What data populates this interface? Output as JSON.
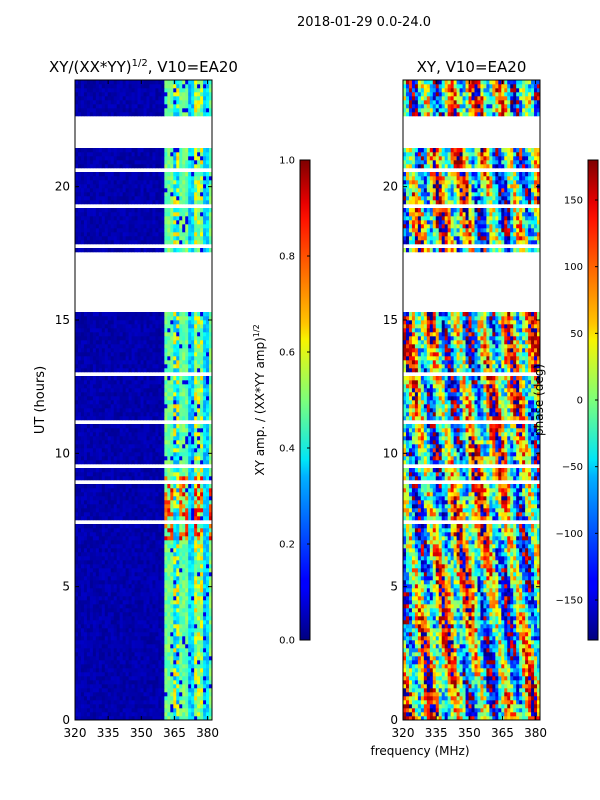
{
  "figure": {
    "suptitle": "2018-01-29 0.0-24.0",
    "shared_xlabel": "frequency (MHz)"
  },
  "chart_data": [
    {
      "type": "heatmap",
      "title": "XY/(XX*YY)",
      "title_sup": "1/2",
      "title_suffix": ", V10=EA20",
      "xlabel": "frequency (MHz)",
      "ylabel": "UT (hours)",
      "xlim": [
        320,
        382
      ],
      "ylim": [
        0,
        24
      ],
      "xticks": [
        320,
        335,
        350,
        365,
        380
      ],
      "yticks": [
        0,
        5,
        10,
        15,
        20
      ],
      "colormap": "jet",
      "active_band_mhz": [
        361,
        382
      ],
      "no_data_hours": [
        [
          15.5,
          17.5
        ],
        [
          21.4,
          22.6
        ]
      ],
      "high_amplitude_hours": [
        [
          6.7,
          9.2
        ]
      ],
      "description_values": {
        "background": 0.0,
        "band_typical": 0.35,
        "band_peak": 0.8
      }
    },
    {
      "type": "colorbar",
      "label": "XY amp. / (XX*YY amp)",
      "label_sup": "1/2",
      "range": [
        0.0,
        1.0
      ],
      "ticks": [
        "0.0",
        "0.2",
        "0.4",
        "0.6",
        "0.8",
        "1.0"
      ],
      "tick_values": [
        0.0,
        0.2,
        0.4,
        0.6,
        0.8,
        1.0
      ],
      "colormap": "jet"
    },
    {
      "type": "heatmap",
      "title": "XY, V10=EA20",
      "xlabel": "frequency (MHz)",
      "ylabel": "",
      "xlim": [
        320,
        382
      ],
      "ylim": [
        0,
        24
      ],
      "xticks": [
        320,
        335,
        350,
        365,
        380
      ],
      "yticks": [
        0,
        5,
        10,
        15,
        20
      ],
      "colormap": "jet",
      "value_range": [
        -180,
        180
      ],
      "no_data_hours": [
        [
          15.5,
          17.5
        ],
        [
          21.4,
          22.6
        ]
      ]
    },
    {
      "type": "colorbar",
      "label": "phase (deg)",
      "range": [
        -180,
        180
      ],
      "ticks": [
        "−150",
        "−100",
        "−50",
        "0",
        "50",
        "100",
        "150"
      ],
      "tick_values": [
        -150,
        -100,
        -50,
        0,
        50,
        100,
        150
      ],
      "colormap": "jet"
    }
  ]
}
